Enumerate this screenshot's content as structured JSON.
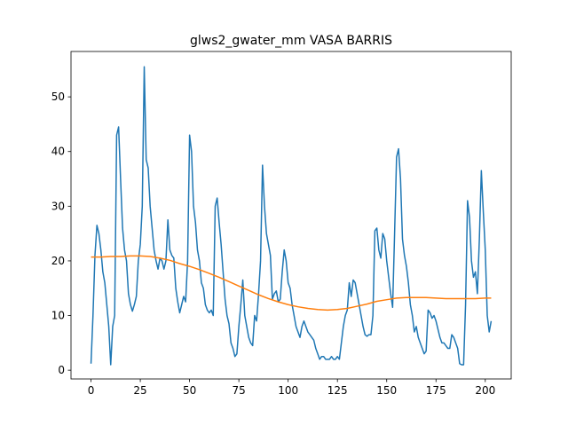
{
  "chart_data": {
    "type": "line",
    "title": "glws2_gwater_mm VASA BARRIS",
    "xlim": [
      -10.15,
      213.15
    ],
    "ylim": [
      -1.6,
      58.3
    ],
    "xticks": [
      0,
      25,
      50,
      75,
      100,
      125,
      150,
      175,
      200
    ],
    "yticks": [
      0,
      10,
      20,
      30,
      40,
      50
    ],
    "series": [
      {
        "color": "#1f77b4",
        "x": [
          0,
          1,
          2,
          3,
          4,
          5,
          6,
          7,
          8,
          9,
          10,
          11,
          12,
          13,
          14,
          15,
          16,
          17,
          18,
          19,
          20,
          21,
          22,
          23,
          24,
          25,
          26,
          27,
          28,
          29,
          30,
          31,
          32,
          33,
          34,
          35,
          36,
          37,
          38,
          39,
          40,
          41,
          42,
          43,
          44,
          45,
          46,
          47,
          48,
          49,
          50,
          51,
          52,
          53,
          54,
          55,
          56,
          57,
          58,
          59,
          60,
          61,
          62,
          63,
          64,
          65,
          66,
          67,
          68,
          69,
          70,
          71,
          72,
          73,
          74,
          75,
          76,
          77,
          78,
          79,
          80,
          81,
          82,
          83,
          84,
          85,
          86,
          87,
          88,
          89,
          90,
          91,
          92,
          93,
          94,
          95,
          96,
          97,
          98,
          99,
          100,
          101,
          102,
          103,
          104,
          105,
          106,
          107,
          108,
          109,
          110,
          111,
          112,
          113,
          114,
          115,
          116,
          117,
          118,
          119,
          120,
          121,
          122,
          123,
          124,
          125,
          126,
          127,
          128,
          129,
          130,
          131,
          132,
          133,
          134,
          135,
          136,
          137,
          138,
          139,
          140,
          141,
          142,
          143,
          144,
          145,
          146,
          147,
          148,
          149,
          150,
          151,
          152,
          153,
          154,
          155,
          156,
          157,
          158,
          159,
          160,
          161,
          162,
          163,
          164,
          165,
          166,
          167,
          168,
          169,
          170,
          171,
          172,
          173,
          174,
          175,
          176,
          177,
          178,
          179,
          180,
          181,
          182,
          183,
          184,
          185,
          186,
          187,
          188,
          189,
          190,
          191,
          192,
          193,
          194,
          195,
          196,
          197,
          198,
          199,
          200,
          201,
          202,
          203
        ],
        "values": [
          1.2,
          10,
          21,
          26.5,
          25,
          22,
          18,
          16,
          12,
          8,
          1,
          8,
          10,
          43,
          44.5,
          35,
          26,
          22,
          20,
          14,
          12,
          10.8,
          12,
          13.5,
          20,
          23,
          30,
          55.5,
          38.5,
          37,
          30,
          26,
          22,
          20,
          18.5,
          20.5,
          20,
          18.5,
          20,
          27.5,
          22,
          21,
          20.5,
          15,
          12.5,
          10.5,
          12,
          13.5,
          12.5,
          20,
          43,
          40,
          30,
          27,
          22,
          20,
          16,
          15,
          12,
          11,
          10.5,
          11,
          10,
          30,
          31.5,
          27,
          23,
          18,
          13,
          10,
          8.5,
          5,
          4,
          2.5,
          3,
          8,
          12,
          16.5,
          10,
          8,
          6,
          5,
          4.5,
          10,
          9,
          14,
          20,
          37.5,
          30,
          25,
          23,
          21,
          13,
          14,
          14.5,
          12.5,
          13,
          18,
          22,
          20,
          16,
          15,
          12,
          10,
          8,
          7,
          6,
          8,
          9,
          8,
          7,
          6.5,
          6,
          5.5,
          4,
          3,
          2,
          2.5,
          2.5,
          2,
          2,
          2,
          2.5,
          2,
          2,
          2.5,
          2,
          5,
          8,
          10,
          11,
          16,
          13.5,
          16.5,
          16,
          14,
          12,
          10,
          8,
          6.5,
          6.2,
          6.5,
          6.5,
          10,
          25.5,
          26,
          22,
          20.5,
          25,
          24,
          20,
          17,
          14,
          11.5,
          25,
          39,
          40.5,
          35,
          24,
          21,
          19,
          16,
          12,
          10,
          7,
          8,
          6,
          5,
          4,
          3,
          3.5,
          11,
          10.5,
          9.5,
          10,
          9,
          7.5,
          6,
          5,
          5,
          4.5,
          4,
          4,
          6.5,
          6,
          5,
          4,
          1.2,
          1,
          1,
          12,
          31,
          28,
          20,
          17,
          18,
          14,
          24,
          36.5,
          29,
          22,
          10,
          7,
          9
        ]
      },
      {
        "color": "#ff7f0e",
        "x": [
          0,
          5,
          10,
          15,
          20,
          25,
          30,
          35,
          40,
          45,
          50,
          55,
          60,
          65,
          70,
          75,
          80,
          85,
          90,
          95,
          100,
          105,
          110,
          115,
          120,
          125,
          130,
          135,
          140,
          145,
          150,
          155,
          160,
          165,
          170,
          175,
          180,
          185,
          190,
          195,
          200,
          203
        ],
        "values": [
          20.7,
          20.7,
          20.8,
          20.8,
          20.9,
          20.9,
          20.8,
          20.5,
          20.1,
          19.5,
          19.0,
          18.4,
          17.7,
          17.0,
          16.2,
          15.4,
          14.6,
          13.8,
          13.1,
          12.5,
          12.0,
          11.6,
          11.3,
          11.1,
          11.0,
          11.1,
          11.3,
          11.7,
          12.1,
          12.6,
          12.9,
          13.2,
          13.3,
          13.3,
          13.3,
          13.2,
          13.1,
          13.1,
          13.1,
          13.1,
          13.2,
          13.2
        ]
      }
    ]
  }
}
